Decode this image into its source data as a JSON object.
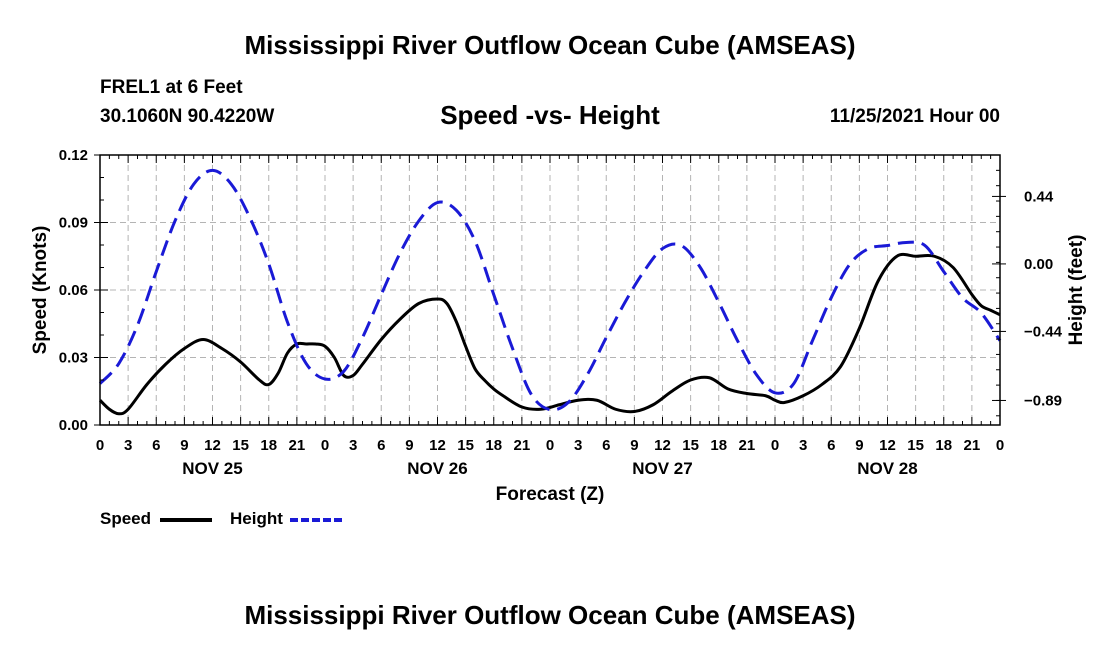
{
  "header": {
    "title": "Mississippi River Outflow Ocean Cube (AMSEAS)",
    "station": "FREL1 at 6 Feet",
    "coords": "30.1060N  90.4220W",
    "subtitle": "Speed -vs- Height",
    "run_time": "11/25/2021 Hour 00"
  },
  "footer": {
    "title": "Mississippi River Outflow Ocean Cube (AMSEAS)"
  },
  "legend": {
    "speed_label": "Speed",
    "height_label": "Height"
  },
  "colors": {
    "speed": "#000000",
    "height": "#1a1ad6",
    "grid": "#b4b4b4"
  },
  "chart_data": {
    "type": "line",
    "title": "Speed -vs- Height",
    "xlabel": "Forecast (Z)",
    "ylabel": "Speed (Knots)",
    "y2label": "Height (feet)",
    "xlim": [
      0,
      96
    ],
    "ylim": [
      0,
      0.12
    ],
    "y2lim": [
      -1.05,
      0.71
    ],
    "x_tick_step": 3,
    "x_tick_labels": [
      "0",
      "3",
      "6",
      "9",
      "12",
      "15",
      "18",
      "21",
      "0",
      "3",
      "6",
      "9",
      "12",
      "15",
      "18",
      "21",
      "0",
      "3",
      "6",
      "9",
      "12",
      "15",
      "18",
      "21",
      "0",
      "3",
      "6",
      "9",
      "12",
      "15",
      "18",
      "21",
      "0"
    ],
    "day_labels": [
      {
        "label": "NOV 25",
        "x": 12
      },
      {
        "label": "NOV 26",
        "x": 36
      },
      {
        "label": "NOV 27",
        "x": 60
      },
      {
        "label": "NOV 28",
        "x": 84
      }
    ],
    "y_ticks": [
      0,
      0.03,
      0.06,
      0.09,
      0.12
    ],
    "y_tick_labels": [
      "0.00",
      "0.03",
      "0.06",
      "0.09",
      "0.12"
    ],
    "y2_ticks": [
      0.44,
      0.0,
      -0.44,
      -0.89
    ],
    "y2_tick_labels": [
      "0.44",
      "0.00",
      "−0.44",
      "−0.89"
    ],
    "grid": true,
    "series": [
      {
        "name": "Speed",
        "axis": "left",
        "style": "solid",
        "x": [
          0,
          1,
          2,
          3,
          5,
          7,
          9,
          11,
          13,
          15,
          17,
          18,
          19,
          20,
          21,
          22,
          23,
          24,
          25,
          26,
          27,
          28,
          30,
          32,
          34,
          36,
          37,
          38,
          39,
          40,
          41,
          42,
          43,
          45,
          47,
          49,
          51,
          53,
          55,
          57,
          59,
          61,
          63,
          65,
          67,
          69,
          71,
          72,
          73,
          75,
          77,
          79,
          81,
          83,
          85,
          87,
          89,
          91,
          93,
          94,
          95,
          96
        ],
        "values": [
          0.011,
          0.007,
          0.005,
          0.007,
          0.018,
          0.027,
          0.034,
          0.038,
          0.034,
          0.028,
          0.02,
          0.018,
          0.023,
          0.032,
          0.036,
          0.036,
          0.036,
          0.035,
          0.03,
          0.022,
          0.022,
          0.027,
          0.038,
          0.047,
          0.054,
          0.056,
          0.054,
          0.046,
          0.035,
          0.025,
          0.02,
          0.016,
          0.013,
          0.008,
          0.007,
          0.009,
          0.011,
          0.011,
          0.007,
          0.006,
          0.009,
          0.015,
          0.02,
          0.021,
          0.016,
          0.014,
          0.013,
          0.011,
          0.01,
          0.013,
          0.018,
          0.026,
          0.043,
          0.064,
          0.075,
          0.075,
          0.075,
          0.07,
          0.058,
          0.053,
          0.051,
          0.049
        ]
      },
      {
        "name": "Height",
        "axis": "right",
        "style": "dashed",
        "x": [
          0,
          2,
          4,
          6,
          8,
          10,
          12,
          14,
          16,
          18,
          20,
          22,
          24,
          26,
          28,
          30,
          32,
          34,
          36,
          38,
          40,
          42,
          44,
          46,
          48,
          50,
          52,
          54,
          56,
          58,
          60,
          62,
          64,
          66,
          68,
          70,
          72,
          74,
          76,
          78,
          80,
          82,
          84,
          86,
          88,
          90,
          92,
          94,
          96
        ],
        "values": [
          -0.78,
          -0.65,
          -0.4,
          -0.05,
          0.28,
          0.52,
          0.61,
          0.52,
          0.3,
          0.0,
          -0.38,
          -0.65,
          -0.75,
          -0.7,
          -0.48,
          -0.2,
          0.07,
          0.28,
          0.4,
          0.35,
          0.15,
          -0.2,
          -0.55,
          -0.85,
          -0.95,
          -0.9,
          -0.72,
          -0.48,
          -0.25,
          -0.05,
          0.1,
          0.12,
          -0.02,
          -0.25,
          -0.5,
          -0.72,
          -0.84,
          -0.78,
          -0.5,
          -0.22,
          0.0,
          0.1,
          0.12,
          0.14,
          0.12,
          -0.05,
          -0.22,
          -0.32,
          -0.5
        ]
      }
    ]
  }
}
